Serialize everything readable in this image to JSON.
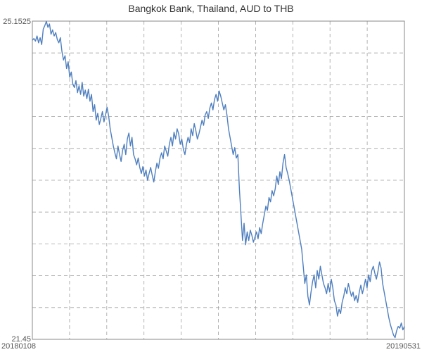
{
  "chart_data": {
    "type": "line",
    "title": "Bangkok Bank, Thailand, AUD to THB",
    "xlabel": "",
    "ylabel": "",
    "x_start_label": "20180108",
    "x_end_label": "20190531",
    "y_max_label": "25.1525",
    "y_min_label": "21.45",
    "ylim": [
      21.45,
      25.1525
    ],
    "grid": true,
    "line_color": "#4f7fbf",
    "series": [
      {
        "values": [
          24.93,
          24.95,
          24.92,
          24.98,
          24.9,
          24.96,
          24.88,
          25.06,
          25.1,
          25.15,
          25.08,
          25.12,
          25.0,
          25.05,
          24.98,
          25.02,
          24.94,
          24.9,
          24.96,
          24.8,
          24.7,
          24.75,
          24.6,
          24.68,
          24.5,
          24.56,
          24.42,
          24.38,
          24.46,
          24.32,
          24.4,
          24.3,
          24.44,
          24.28,
          24.35,
          24.25,
          24.36,
          24.22,
          24.3,
          24.1,
          24.18,
          24.0,
          24.08,
          23.95,
          24.02,
          24.1,
          23.98,
          24.06,
          24.15,
          24.05,
          23.9,
          23.8,
          23.7,
          23.62,
          23.55,
          23.7,
          23.6,
          23.52,
          23.65,
          23.72,
          23.6,
          23.78,
          23.85,
          23.7,
          23.8,
          23.6,
          23.55,
          23.48,
          23.56,
          23.45,
          23.38,
          23.46,
          23.35,
          23.42,
          23.3,
          23.38,
          23.45,
          23.36,
          23.28,
          23.4,
          23.5,
          23.44,
          23.56,
          23.62,
          23.55,
          23.7,
          23.64,
          23.58,
          23.72,
          23.8,
          23.7,
          23.86,
          23.78,
          23.9,
          23.84,
          23.72,
          23.78,
          23.66,
          23.6,
          23.72,
          23.8,
          23.74,
          23.9,
          23.82,
          23.96,
          23.88,
          23.78,
          23.84,
          23.92,
          24.0,
          23.94,
          24.06,
          24.1,
          24.02,
          24.14,
          24.2,
          24.12,
          24.24,
          24.3,
          24.22,
          24.34,
          24.28,
          24.2,
          24.12,
          24.18,
          24.06,
          23.9,
          23.8,
          23.7,
          23.6,
          23.68,
          23.56,
          23.6,
          23.2,
          22.9,
          22.6,
          22.8,
          22.55,
          22.7,
          22.6,
          22.72,
          22.66,
          22.58,
          22.64,
          22.7,
          22.62,
          22.75,
          22.68,
          22.8,
          22.9,
          23.0,
          22.95,
          23.1,
          23.05,
          23.18,
          23.12,
          23.2,
          23.35,
          23.25,
          23.4,
          23.32,
          23.5,
          23.6,
          23.45,
          23.38,
          23.3,
          23.2,
          23.1,
          23.0,
          22.9,
          22.8,
          22.7,
          22.6,
          22.5,
          22.3,
          22.1,
          22.2,
          21.95,
          21.85,
          22.0,
          22.12,
          22.2,
          22.05,
          22.25,
          22.15,
          22.3,
          22.2,
          22.1,
          22.05,
          21.98,
          22.1,
          22.0,
          22.15,
          22.05,
          21.9,
          21.85,
          21.72,
          21.8,
          21.75,
          21.88,
          21.95,
          22.05,
          21.98,
          22.1,
          22.02,
          21.95,
          22.0,
          21.9,
          21.96,
          21.88,
          22.0,
          22.08,
          21.98,
          22.06,
          22.15,
          22.05,
          22.2,
          22.12,
          22.25,
          22.3,
          22.22,
          22.15,
          22.24,
          22.35,
          22.28,
          22.1,
          22.0,
          21.9,
          21.8,
          21.7,
          21.62,
          21.56,
          21.5,
          21.47,
          21.55,
          21.6,
          21.58,
          21.64,
          21.56,
          21.6
        ]
      }
    ]
  }
}
